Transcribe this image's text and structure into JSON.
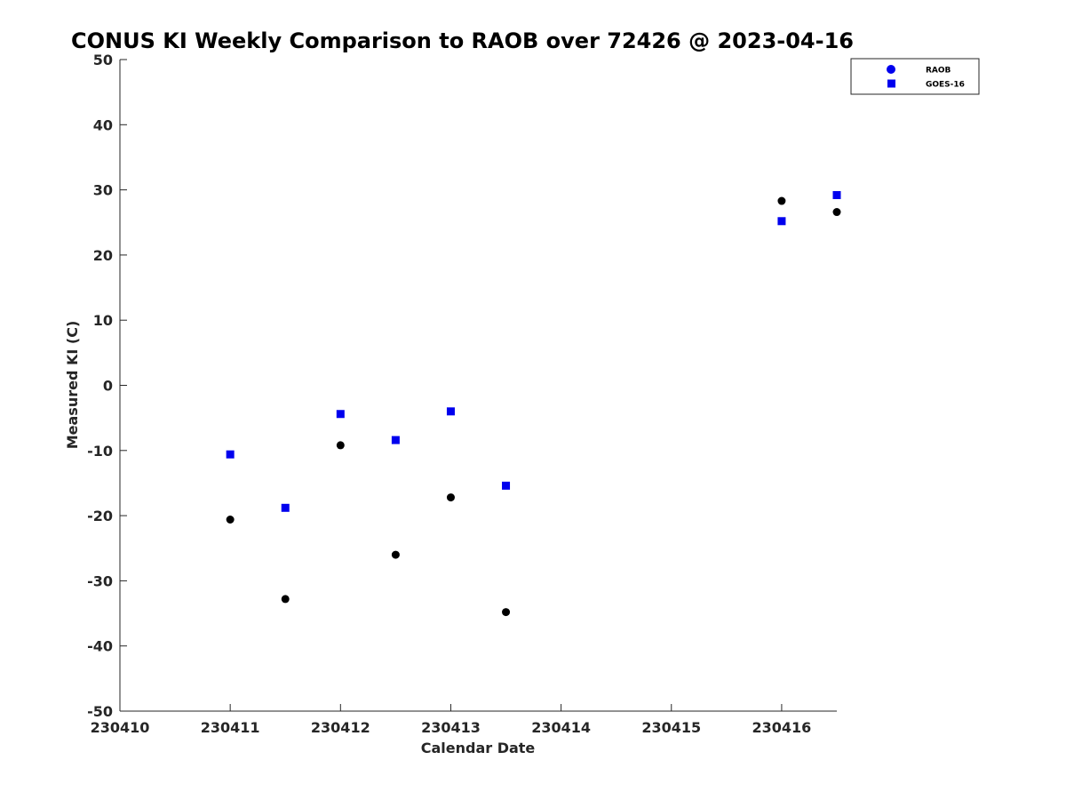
{
  "chart_data": {
    "type": "scatter",
    "title": "CONUS KI Weekly Comparison to RAOB over 72426 @ 2023-04-16",
    "xlabel": "Calendar Date",
    "ylabel": "Measured KI (C)",
    "xlim": [
      230410,
      230416.5
    ],
    "ylim": [
      -50,
      50
    ],
    "xticks": [
      230410,
      230411,
      230412,
      230413,
      230414,
      230415,
      230416
    ],
    "xtick_labels": [
      "230410",
      "230411",
      "230412",
      "230413",
      "230414",
      "230415",
      "230416"
    ],
    "yticks": [
      50,
      40,
      30,
      20,
      10,
      0,
      -10,
      -20,
      -30,
      -40,
      -50
    ],
    "ytick_labels": [
      "50",
      "40",
      "30",
      "20",
      "10",
      "0",
      "-10",
      "-20",
      "-30",
      "-40",
      "-50"
    ],
    "grid": false,
    "legend_position": "top-right",
    "series": [
      {
        "name": "RAOB",
        "marker": "circle",
        "color": "#000000",
        "legend_color": "#0000ee",
        "x": [
          230411,
          230411.5,
          230412,
          230412.5,
          230413,
          230413.5,
          230416,
          230416.5
        ],
        "y": [
          -20.6,
          -32.8,
          -9.2,
          -26.0,
          -17.2,
          -34.8,
          28.3,
          26.6
        ]
      },
      {
        "name": "GOES-16",
        "marker": "square",
        "color": "#0000ee",
        "legend_color": "#0000ee",
        "x": [
          230411,
          230411.5,
          230412,
          230412.5,
          230413,
          230413.5,
          230416,
          230416.5
        ],
        "y": [
          -10.6,
          -18.8,
          -4.4,
          -8.4,
          -4.0,
          -15.4,
          25.2,
          29.2
        ]
      }
    ]
  }
}
